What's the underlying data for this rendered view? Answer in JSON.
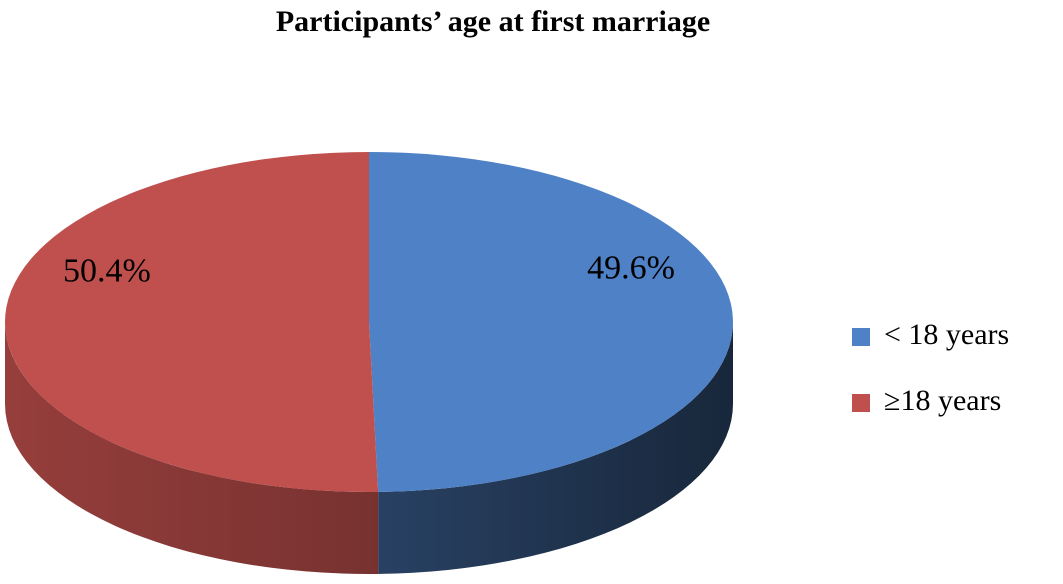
{
  "chart_data": {
    "type": "pie",
    "title": "Participants’ age at first marriage",
    "categories": [
      "< 18 years",
      "≥18 years"
    ],
    "values": [
      49.6,
      50.4
    ],
    "value_labels": [
      "49.6%",
      "50.4%"
    ],
    "colors": [
      "#4f81c6",
      "#c0504d"
    ],
    "legend": "right"
  }
}
